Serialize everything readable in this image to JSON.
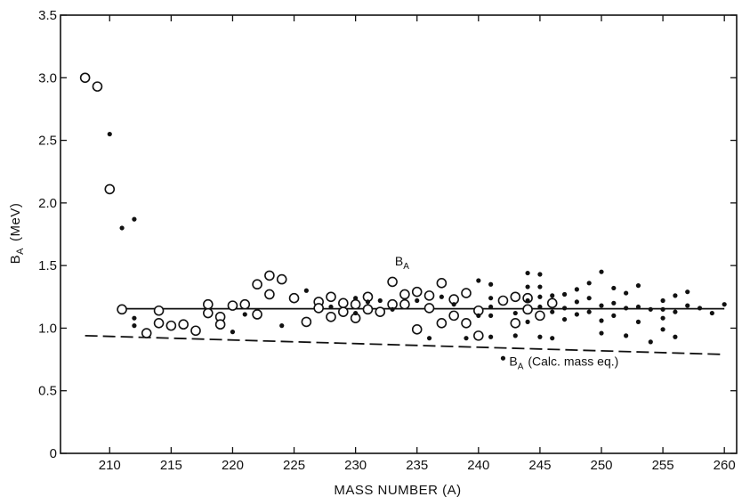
{
  "chart_data": {
    "type": "scatter",
    "xlabel": "MASS NUMBER (A)",
    "ylabel": "B",
    "ylabel_sub": "A",
    "ylabel_unit": "(MeV)",
    "xlim": [
      206,
      261
    ],
    "ylim": [
      0,
      3.5
    ],
    "xticks": [
      210,
      215,
      220,
      225,
      230,
      235,
      240,
      245,
      250,
      255,
      260
    ],
    "yticks": [
      0,
      0.5,
      1.0,
      1.5,
      2.0,
      2.5,
      3.0,
      3.5
    ],
    "ytick_labels": [
      "0",
      "0.5",
      "1.0",
      "1.5",
      "2.0",
      "2.5",
      "3.0",
      "3.5"
    ],
    "grid": false,
    "annotations": [
      {
        "main": "B",
        "sub": "A",
        "rest": "",
        "x": 233.2,
        "y": 1.5
      },
      {
        "main": "B",
        "sub": "A",
        "rest": "(Calc. mass eq.)",
        "x": 242.5,
        "y": 0.7
      }
    ],
    "series": [
      {
        "marker": "open-circle",
        "points": [
          [
            208,
            3.0
          ],
          [
            209,
            2.93
          ],
          [
            210,
            2.11
          ],
          [
            211,
            1.15
          ],
          [
            213,
            0.96
          ],
          [
            214,
            1.04
          ],
          [
            214,
            1.14
          ],
          [
            215,
            1.02
          ],
          [
            216,
            1.03
          ],
          [
            217,
            0.98
          ],
          [
            218,
            1.12
          ],
          [
            218,
            1.19
          ],
          [
            219,
            1.09
          ],
          [
            219,
            1.03
          ],
          [
            220,
            1.18
          ],
          [
            221,
            1.19
          ],
          [
            222,
            1.35
          ],
          [
            222,
            1.11
          ],
          [
            223,
            1.42
          ],
          [
            223,
            1.27
          ],
          [
            224,
            1.39
          ],
          [
            225,
            1.24
          ],
          [
            226,
            1.05
          ],
          [
            227,
            1.21
          ],
          [
            227,
            1.16
          ],
          [
            228,
            1.25
          ],
          [
            228,
            1.09
          ],
          [
            229,
            1.2
          ],
          [
            229,
            1.13
          ],
          [
            230,
            1.19
          ],
          [
            230,
            1.08
          ],
          [
            231,
            1.25
          ],
          [
            231,
            1.15
          ],
          [
            232,
            1.13
          ],
          [
            233,
            1.37
          ],
          [
            233,
            1.19
          ],
          [
            234,
            1.27
          ],
          [
            234,
            1.19
          ],
          [
            235,
            1.29
          ],
          [
            235,
            0.99
          ],
          [
            236,
            1.26
          ],
          [
            236,
            1.16
          ],
          [
            237,
            1.36
          ],
          [
            237,
            1.04
          ],
          [
            238,
            1.23
          ],
          [
            238,
            1.1
          ],
          [
            239,
            1.28
          ],
          [
            239,
            1.04
          ],
          [
            240,
            1.14
          ],
          [
            240,
            0.94
          ],
          [
            242,
            1.22
          ],
          [
            243,
            1.25
          ],
          [
            243,
            1.04
          ],
          [
            244,
            1.24
          ],
          [
            244,
            1.15
          ],
          [
            245,
            1.1
          ],
          [
            246,
            1.2
          ]
        ]
      },
      {
        "marker": "filled-dot",
        "points": [
          [
            210,
            2.55
          ],
          [
            211,
            1.8
          ],
          [
            212,
            1.87
          ],
          [
            212,
            1.08
          ],
          [
            212,
            1.02
          ],
          [
            220,
            0.97
          ],
          [
            221,
            1.11
          ],
          [
            224,
            1.02
          ],
          [
            226,
            1.3
          ],
          [
            228,
            1.17
          ],
          [
            230,
            1.24
          ],
          [
            230,
            1.12
          ],
          [
            231,
            1.21
          ],
          [
            232,
            1.22
          ],
          [
            233,
            1.15
          ],
          [
            235,
            1.22
          ],
          [
            236,
            0.92
          ],
          [
            237,
            1.25
          ],
          [
            238,
            1.19
          ],
          [
            239,
            0.92
          ],
          [
            240,
            1.38
          ],
          [
            240,
            1.1
          ],
          [
            241,
            1.35
          ],
          [
            241,
            1.24
          ],
          [
            241,
            1.17
          ],
          [
            241,
            1.1
          ],
          [
            241,
            0.93
          ],
          [
            242,
            0.76
          ],
          [
            243,
            1.12
          ],
          [
            243,
            0.94
          ],
          [
            244,
            1.44
          ],
          [
            244,
            1.33
          ],
          [
            244,
            1.22
          ],
          [
            244,
            1.05
          ],
          [
            245,
            1.43
          ],
          [
            245,
            1.33
          ],
          [
            245,
            1.25
          ],
          [
            245,
            1.17
          ],
          [
            245,
            0.93
          ],
          [
            246,
            1.26
          ],
          [
            246,
            1.13
          ],
          [
            246,
            0.92
          ],
          [
            247,
            1.27
          ],
          [
            247,
            1.16
          ],
          [
            247,
            1.07
          ],
          [
            248,
            1.31
          ],
          [
            248,
            1.21
          ],
          [
            248,
            1.11
          ],
          [
            249,
            1.36
          ],
          [
            249,
            1.24
          ],
          [
            249,
            1.13
          ],
          [
            250,
            1.45
          ],
          [
            250,
            1.18
          ],
          [
            250,
            1.06
          ],
          [
            250,
            0.96
          ],
          [
            251,
            1.32
          ],
          [
            251,
            1.2
          ],
          [
            251,
            1.1
          ],
          [
            252,
            1.28
          ],
          [
            252,
            1.16
          ],
          [
            252,
            0.94
          ],
          [
            253,
            1.34
          ],
          [
            253,
            1.17
          ],
          [
            253,
            1.05
          ],
          [
            254,
            1.15
          ],
          [
            254,
            0.89
          ],
          [
            255,
            1.22
          ],
          [
            255,
            1.15
          ],
          [
            255,
            1.08
          ],
          [
            255,
            0.99
          ],
          [
            256,
            1.26
          ],
          [
            256,
            1.13
          ],
          [
            256,
            0.93
          ],
          [
            257,
            1.29
          ],
          [
            257,
            1.18
          ],
          [
            258,
            1.16
          ],
          [
            259,
            1.12
          ],
          [
            260,
            1.19
          ]
        ]
      },
      {
        "marker": "solid-line",
        "points": [
          [
            211,
            1.155
          ],
          [
            260,
            1.155
          ]
        ]
      },
      {
        "marker": "dashed-line",
        "points": [
          [
            208,
            0.94
          ],
          [
            260,
            0.79
          ]
        ]
      }
    ]
  }
}
